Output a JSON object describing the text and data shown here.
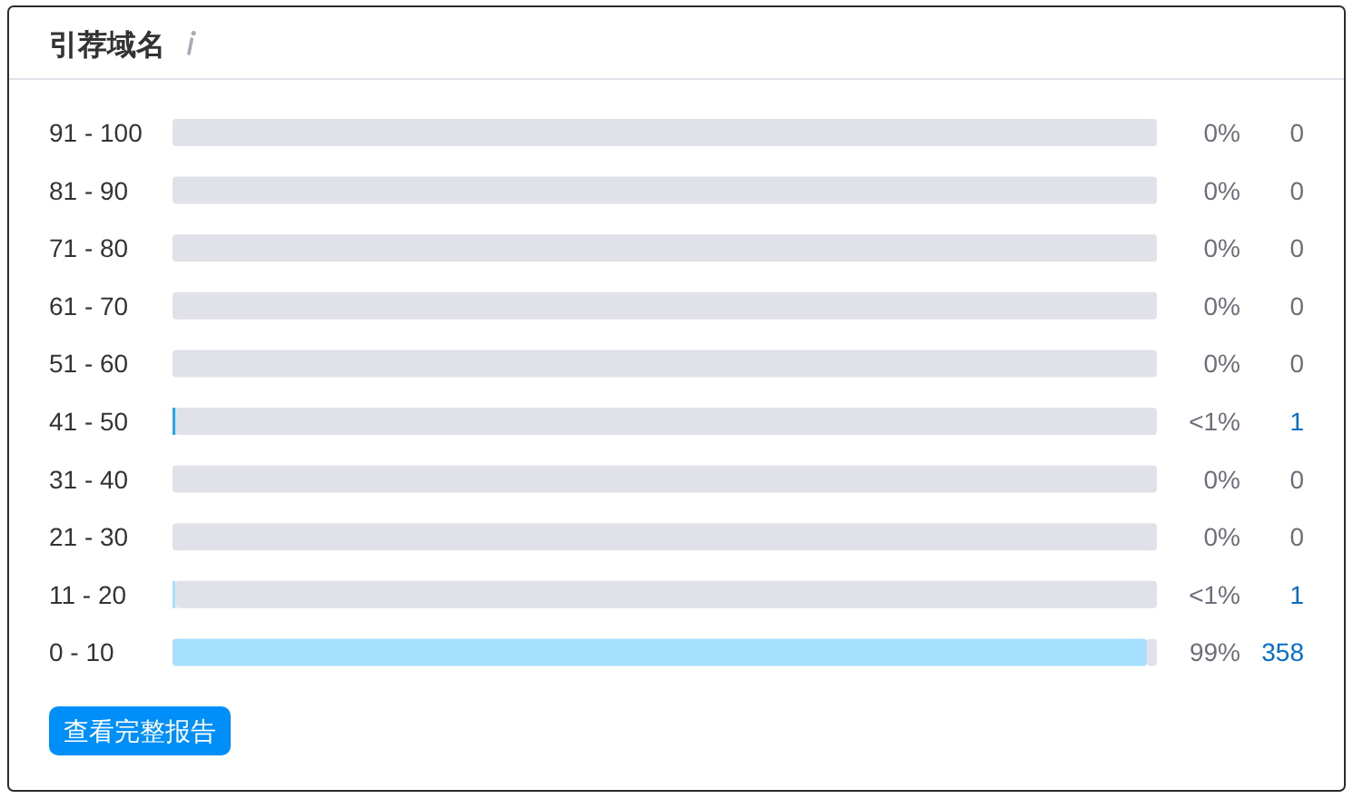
{
  "chart_data": {
    "type": "bar",
    "orientation": "horizontal",
    "stacked": true,
    "title": "引荐域名",
    "categories": [
      "91 - 100",
      "81 - 90",
      "71 - 80",
      "61 - 70",
      "51 - 60",
      "41 - 50",
      "31 - 40",
      "21 - 30",
      "11 - 20",
      "0 - 10"
    ],
    "series": [
      {
        "values": [
          0,
          0,
          0,
          0,
          0,
          0.3,
          0,
          0,
          0.3,
          99
        ],
        "colors": [
          "#a7dfff",
          "#a7dfff",
          "#a7dfff",
          "#a7dfff",
          "#a7dfff",
          "#1ea7fd",
          "#a7dfff",
          "#a7dfff",
          "#a7dfff",
          "#a7dfff"
        ],
        "value_labels": [
          "0%",
          "0%",
          "0%",
          "0%",
          "0%",
          "<1%",
          "0%",
          "0%",
          "<1%",
          "99%"
        ]
      },
      {
        "values": [
          100,
          100,
          100,
          100,
          100,
          99.7,
          100,
          100,
          99.7,
          1
        ],
        "color": "#e0e1e9"
      }
    ],
    "xlim": [
      0,
      100
    ],
    "tick_labels": "y",
    "annotations": [
      "0",
      "0",
      "0",
      "0",
      "0",
      "1",
      "0",
      "0",
      "1",
      "358",
      "查看完整报告"
    ]
  }
}
